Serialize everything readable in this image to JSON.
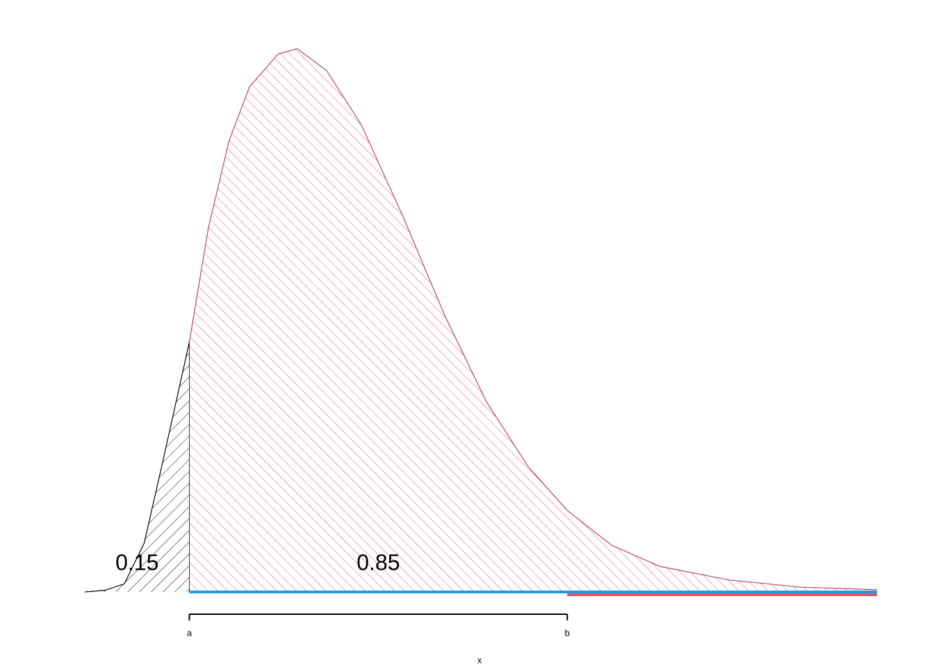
{
  "chart_data": {
    "type": "density",
    "xlabel": "x",
    "x": [
      0,
      0.25,
      0.5,
      0.75,
      1.0,
      1.32,
      1.56,
      1.82,
      2.08,
      2.44,
      2.68,
      3.05,
      3.49,
      4.02,
      4.54,
      5.07,
      5.6,
      6.09,
      6.65,
      7.26,
      8.14,
      9.02,
      10
    ],
    "values": [
      0,
      0.003,
      0.015,
      0.09,
      0.25,
      0.46,
      0.67,
      0.83,
      0.93,
      0.99,
      1.0,
      0.96,
      0.86,
      0.69,
      0.51,
      0.35,
      0.23,
      0.15,
      0.086,
      0.047,
      0.022,
      0.009,
      0.004
    ],
    "xlim": [
      0,
      10
    ],
    "ylim": [
      0,
      1
    ],
    "xticks": [
      {
        "value": 1.32,
        "label": "a"
      },
      {
        "value": 6.09,
        "label": "b"
      }
    ],
    "regions": [
      {
        "value": 0.15,
        "color": "#000000"
      },
      {
        "value": 0.85,
        "color": "#df536b"
      }
    ],
    "interval_colors": [
      "#2297e6",
      "#df536b"
    ]
  }
}
